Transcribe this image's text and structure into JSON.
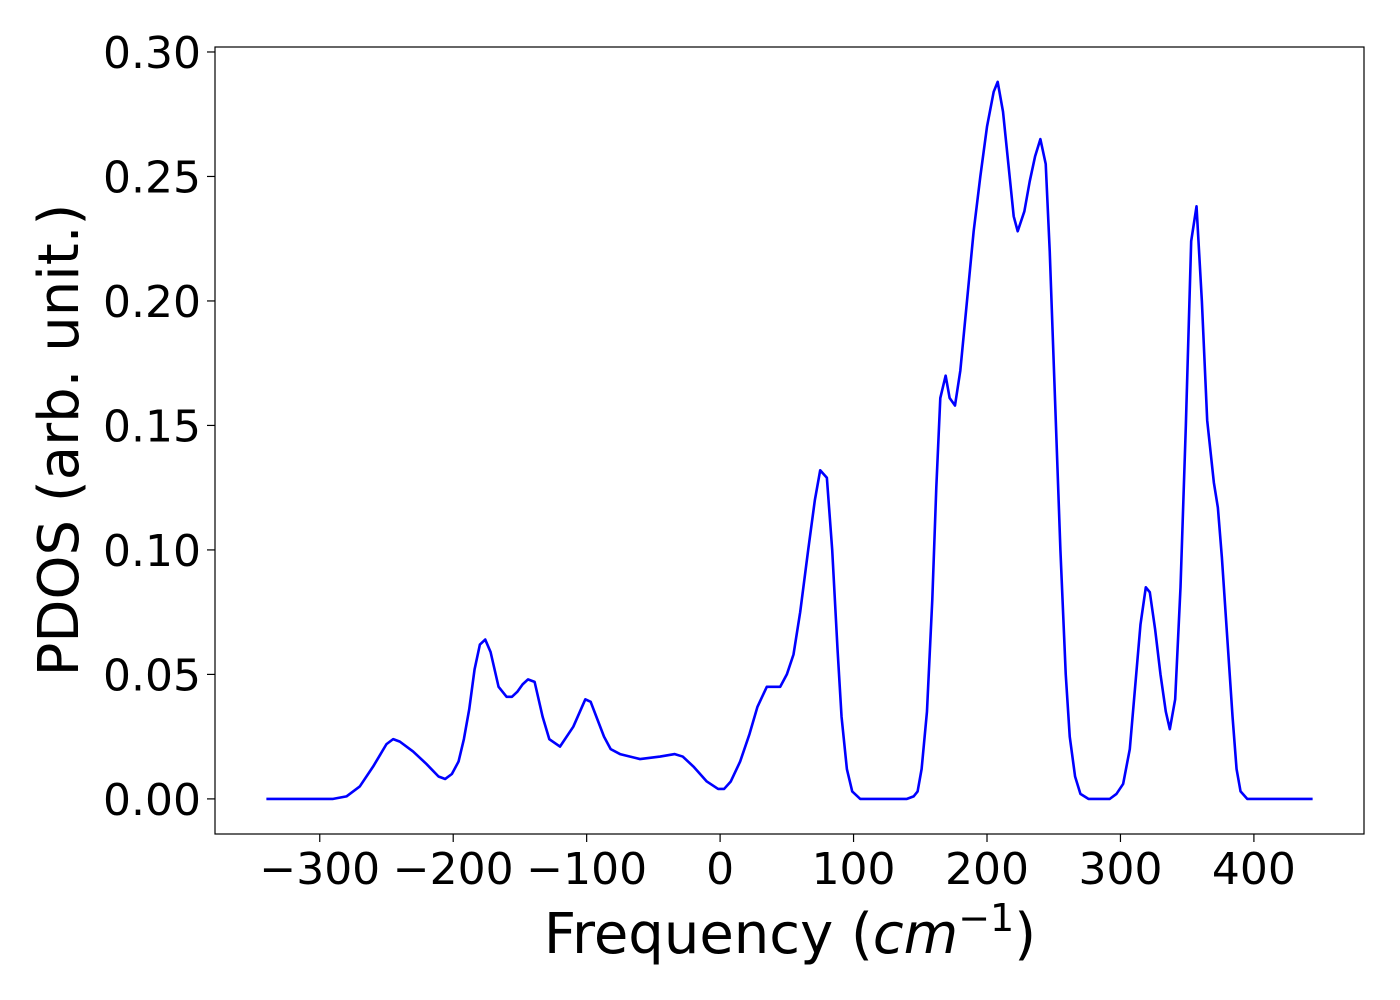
{
  "chart_data": {
    "type": "line",
    "xlabel_parts": [
      "Frequency (",
      "cm",
      "−1",
      ")"
    ],
    "ylabel": "PDOS (arb. unit.)",
    "x": [
      -340,
      -290,
      -280,
      -270,
      -260,
      -250,
      -245,
      -240,
      -230,
      -220,
      -211,
      -206,
      -201,
      -196,
      -192,
      -188,
      -184,
      -180,
      -176,
      -172,
      -166,
      -160,
      -156,
      -152,
      -148,
      -144,
      -139,
      -133,
      -128,
      -120,
      -110,
      -101,
      -97,
      -92,
      -87,
      -82,
      -75,
      -60,
      -45,
      -34,
      -28,
      -20,
      -10,
      -1.5,
      3,
      8,
      15,
      22,
      28,
      35,
      40,
      45,
      50,
      55,
      60,
      66,
      71,
      75,
      80,
      84,
      88,
      91,
      95,
      99,
      105,
      140,
      145,
      148,
      151,
      155,
      159,
      162,
      165,
      169,
      172,
      176,
      180,
      185,
      190,
      195,
      200,
      205,
      208,
      212,
      216,
      220,
      223,
      228,
      232,
      236,
      240,
      244,
      247,
      251,
      255,
      259,
      262,
      266,
      270,
      276,
      292,
      297,
      302,
      307,
      311,
      315,
      319,
      322,
      326,
      330,
      334,
      337,
      341,
      345,
      349,
      353,
      357,
      361,
      365,
      370,
      373,
      376,
      380,
      384,
      387,
      390,
      395,
      444
    ],
    "series": [
      {
        "name": "PDOS",
        "color": "#0000ff",
        "values": [
          0,
          0,
          0.001,
          0.005,
          0.013,
          0.022,
          0.024,
          0.023,
          0.019,
          0.014,
          0.009,
          0.008,
          0.01,
          0.015,
          0.024,
          0.036,
          0.052,
          0.062,
          0.064,
          0.059,
          0.045,
          0.041,
          0.041,
          0.043,
          0.046,
          0.048,
          0.047,
          0.033,
          0.024,
          0.021,
          0.029,
          0.04,
          0.039,
          0.032,
          0.025,
          0.02,
          0.018,
          0.016,
          0.017,
          0.018,
          0.017,
          0.013,
          0.007,
          0.004,
          0.004,
          0.007,
          0.015,
          0.026,
          0.037,
          0.045,
          0.045,
          0.045,
          0.05,
          0.058,
          0.075,
          0.1,
          0.12,
          0.132,
          0.129,
          0.1,
          0.06,
          0.033,
          0.012,
          0.003,
          0,
          0,
          0.001,
          0.003,
          0.012,
          0.035,
          0.08,
          0.125,
          0.161,
          0.17,
          0.161,
          0.158,
          0.172,
          0.2,
          0.228,
          0.25,
          0.27,
          0.284,
          0.288,
          0.276,
          0.255,
          0.234,
          0.228,
          0.236,
          0.248,
          0.258,
          0.265,
          0.255,
          0.22,
          0.16,
          0.1,
          0.05,
          0.025,
          0.009,
          0.002,
          0,
          0,
          0.002,
          0.006,
          0.02,
          0.045,
          0.07,
          0.085,
          0.083,
          0.068,
          0.05,
          0.035,
          0.028,
          0.04,
          0.085,
          0.15,
          0.224,
          0.238,
          0.2,
          0.152,
          0.127,
          0.117,
          0.097,
          0.065,
          0.033,
          0.012,
          0.003,
          0,
          0
        ]
      }
    ],
    "xlim": [
      -378.5,
      482.5
    ],
    "ylim": [
      -0.0141,
      0.302
    ],
    "xticks": [
      {
        "value": -300,
        "label": "−300"
      },
      {
        "value": -200,
        "label": "−200"
      },
      {
        "value": -100,
        "label": "−100"
      },
      0,
      100,
      200,
      300,
      400
    ],
    "yticks": [
      {
        "value": 0,
        "label": "0.00"
      },
      {
        "value": 0.05,
        "label": "0.05"
      },
      {
        "value": 0.1,
        "label": "0.10"
      },
      {
        "value": 0.15,
        "label": "0.15"
      },
      {
        "value": 0.2,
        "label": "0.20"
      },
      {
        "value": 0.25,
        "label": "0.25"
      },
      {
        "value": 0.3,
        "label": "0.30"
      }
    ],
    "grid": false
  }
}
